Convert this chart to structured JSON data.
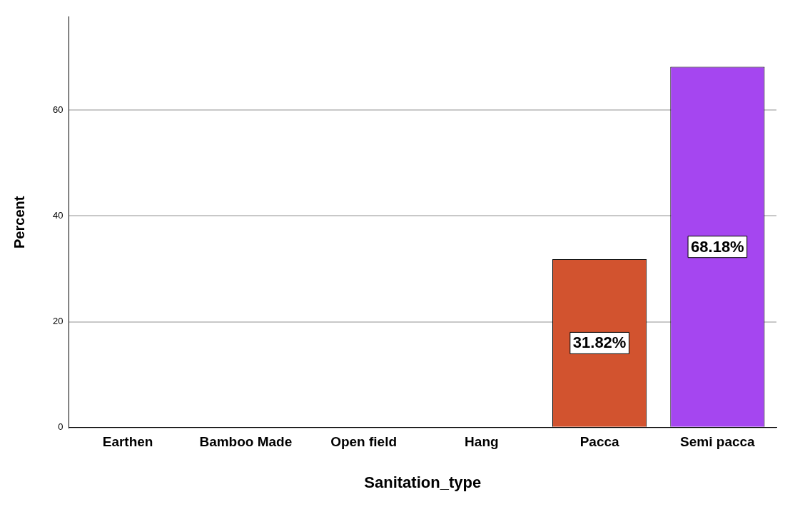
{
  "chart_data": {
    "type": "bar",
    "xlabel": "Sanitation_type",
    "ylabel": "Percent",
    "categories": [
      "Earthen",
      "Bamboo Made",
      "Open field",
      "Hang",
      "Pacca",
      "Semi pacca"
    ],
    "values": [
      0,
      0,
      0,
      0,
      31.82,
      68.18
    ],
    "colors": [
      "#d2532f",
      "#d2532f",
      "#d2532f",
      "#d2532f",
      "#d2532f",
      "#a546f0"
    ],
    "value_labels": [
      null,
      null,
      null,
      null,
      "31.82%",
      "68.18%"
    ],
    "ylim": [
      0,
      77.6
    ],
    "yticks": [
      0,
      20,
      40,
      60
    ],
    "grid": "y",
    "legend": false
  }
}
